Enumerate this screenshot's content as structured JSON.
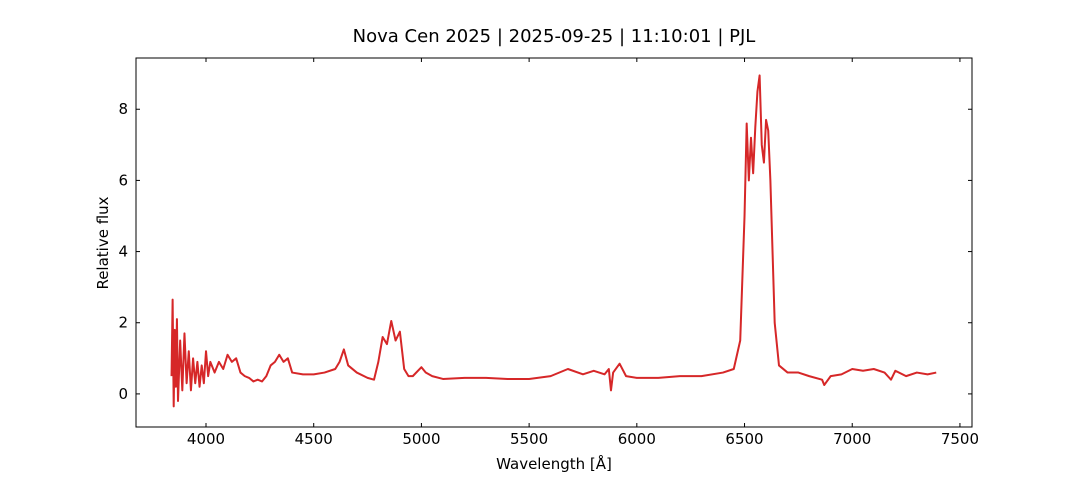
{
  "chart_data": {
    "type": "line",
    "title": "Nova Cen 2025 | 2025-09-25 | 11:10:01 | PJL",
    "x_label": "Wavelength [Å]",
    "y_label": "Relative flux",
    "color": "#d62728",
    "x": [
      3840,
      3845,
      3850,
      3855,
      3860,
      3865,
      3870,
      3880,
      3890,
      3900,
      3910,
      3920,
      3930,
      3940,
      3950,
      3960,
      3970,
      3980,
      3990,
      4000,
      4010,
      4020,
      4040,
      4060,
      4080,
      4100,
      4120,
      4140,
      4160,
      4180,
      4200,
      4220,
      4240,
      4260,
      4280,
      4300,
      4320,
      4340,
      4360,
      4380,
      4400,
      4450,
      4500,
      4550,
      4600,
      4620,
      4640,
      4660,
      4700,
      4750,
      4780,
      4800,
      4820,
      4840,
      4860,
      4880,
      4900,
      4920,
      4940,
      4960,
      5000,
      5020,
      5050,
      5100,
      5200,
      5300,
      5400,
      5500,
      5600,
      5680,
      5750,
      5800,
      5850,
      5870,
      5880,
      5890,
      5920,
      5950,
      6000,
      6100,
      6200,
      6300,
      6400,
      6450,
      6480,
      6500,
      6510,
      6520,
      6530,
      6540,
      6550,
      6560,
      6570,
      6580,
      6590,
      6600,
      6610,
      6620,
      6640,
      6660,
      6700,
      6750,
      6800,
      6860,
      6870,
      6900,
      6950,
      7000,
      7050,
      7100,
      7150,
      7180,
      7200,
      7250,
      7300,
      7350,
      7390
    ],
    "values": [
      0.5,
      2.65,
      -0.35,
      1.8,
      0.2,
      2.1,
      -0.2,
      1.5,
      0.1,
      1.7,
      0.3,
      1.2,
      0.1,
      1.0,
      0.3,
      0.9,
      0.2,
      0.8,
      0.3,
      1.2,
      0.5,
      0.9,
      0.6,
      0.9,
      0.7,
      1.1,
      0.9,
      1.0,
      0.6,
      0.5,
      0.45,
      0.35,
      0.4,
      0.35,
      0.5,
      0.8,
      0.9,
      1.1,
      0.9,
      1.0,
      0.6,
      0.55,
      0.55,
      0.6,
      0.7,
      0.9,
      1.25,
      0.8,
      0.6,
      0.45,
      0.4,
      0.9,
      1.6,
      1.4,
      2.05,
      1.5,
      1.75,
      0.7,
      0.5,
      0.5,
      0.75,
      0.6,
      0.5,
      0.42,
      0.45,
      0.45,
      0.42,
      0.42,
      0.5,
      0.7,
      0.55,
      0.65,
      0.55,
      0.7,
      0.1,
      0.6,
      0.85,
      0.5,
      0.45,
      0.45,
      0.5,
      0.5,
      0.6,
      0.7,
      1.5,
      5.0,
      7.6,
      6.0,
      7.2,
      6.2,
      7.5,
      8.5,
      8.95,
      7.0,
      6.5,
      7.7,
      7.4,
      6.0,
      2.0,
      0.8,
      0.6,
      0.6,
      0.5,
      0.4,
      0.25,
      0.5,
      0.55,
      0.7,
      0.65,
      0.7,
      0.6,
      0.4,
      0.65,
      0.5,
      0.6,
      0.55,
      0.6
    ],
    "xlim": [
      3675,
      7556
    ],
    "ylim": [
      -0.93,
      9.44
    ],
    "xticks": [
      4000,
      4500,
      5000,
      5500,
      6000,
      6500,
      7000,
      7500
    ],
    "yticks": [
      0,
      2,
      4,
      6,
      8
    ]
  }
}
